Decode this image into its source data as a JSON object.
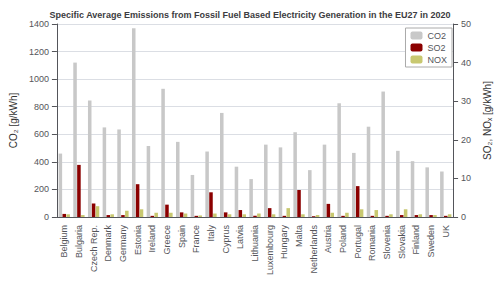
{
  "chart_data": {
    "type": "bar",
    "title": "Specific Average Emissions from Fossil Fuel Based Electricity Generation in the EU27 in 2020",
    "categories": [
      "Belgium",
      "Bulgaria",
      "Czech Rep.",
      "Denmark",
      "Germany",
      "Estonia",
      "Ireland",
      "Greece",
      "Spain",
      "France",
      "Italy",
      "Cyprus",
      "Latvia",
      "Lithuania",
      "Luxembourg",
      "Hungary",
      "Malta",
      "Netherlands",
      "Austria",
      "Poland",
      "Portugal",
      "Romania",
      "Slovenia",
      "Slovakia",
      "Finland",
      "Sweden",
      "UK"
    ],
    "series": [
      {
        "name": "CO2",
        "color": "#c8c8c8",
        "axis": "y",
        "values": [
          460,
          1120,
          845,
          650,
          635,
          1370,
          515,
          930,
          545,
          305,
          475,
          755,
          365,
          275,
          525,
          505,
          615,
          340,
          525,
          825,
          465,
          655,
          910,
          480,
          405,
          360,
          330
        ]
      },
      {
        "name": "SO2",
        "color": "#8b0000",
        "axis": "y2",
        "values": [
          0.8,
          13.5,
          3.5,
          0.5,
          0.5,
          8.5,
          0.3,
          3.2,
          1.2,
          0.3,
          6.4,
          1.2,
          1.8,
          0.3,
          2.3,
          0.3,
          7.0,
          0.2,
          3.4,
          0.3,
          8.0,
          0.3,
          0.3,
          0.5,
          0.5,
          0.5,
          0.3
        ]
      },
      {
        "name": "NOX",
        "color": "#c8c870",
        "axis": "y2",
        "values": [
          0.7,
          0.5,
          2.8,
          0.7,
          1.6,
          2.0,
          1.1,
          1.1,
          0.9,
          0.4,
          0.9,
          0.7,
          0.7,
          0.9,
          0.7,
          2.3,
          0.7,
          0.5,
          1.1,
          1.1,
          2.0,
          1.8,
          0.7,
          2.0,
          0.7,
          0.5,
          0.7
        ]
      }
    ],
    "ylabel": "CO₂ [g/kWh]",
    "y2label": "SO₂, NOₓ [g/kWh]",
    "ylim": [
      0,
      1400
    ],
    "yticks": [
      0,
      200,
      400,
      600,
      800,
      1000,
      1200,
      1400
    ],
    "y2lim": [
      0,
      50
    ],
    "y2ticks": [
      0,
      10,
      20,
      30,
      40,
      50
    ],
    "grid": true,
    "legend": "upper right"
  }
}
